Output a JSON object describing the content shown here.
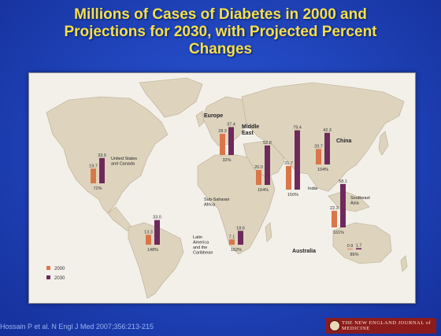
{
  "slide": {
    "title_line1": "Millions of Cases of Diabetes in 2000 and",
    "title_line2": "Projections for 2030, with Projected Percent",
    "title_line3": "Changes",
    "citation": "Hossain P et al. N Engl J Med 2007;356:213-215",
    "journal": "THE NEW ENGLAND JOURNAL of MEDICINE"
  },
  "colors": {
    "background": "#2146be",
    "title": "#f4e04a",
    "land": "#ded4be",
    "ocean": "#f3f0ea",
    "bar_2000": "#d9764a",
    "bar_2030": "#6e2a5a"
  },
  "chart_data": {
    "type": "bar",
    "legend": [
      "2000",
      "2030"
    ],
    "legend_position": "bottom-left",
    "series": [
      {
        "name": "2000",
        "color": "#d9764a"
      },
      {
        "name": "2030",
        "color": "#6e2a5a"
      }
    ],
    "regions": [
      {
        "id": "na",
        "name_lines": [
          "United States",
          "and Canada"
        ],
        "y2000": 19.7,
        "y2030": 33.9,
        "y2000_label": "19.7",
        "y2030_label": "33.9",
        "pct": "72%"
      },
      {
        "id": "la",
        "name_lines": [
          "Latin",
          "America",
          "and the",
          "Caribbean"
        ],
        "y2000": 13.3,
        "y2030": 33.0,
        "y2000_label": "13.3",
        "y2030_label": "33.0",
        "pct": "148%"
      },
      {
        "id": "eu",
        "name_lines": [
          "Europe"
        ],
        "y2000": 28.3,
        "y2030": 37.4,
        "y2000_label": "28.3",
        "y2030_label": "37.4",
        "pct": "32%"
      },
      {
        "id": "me",
        "name_lines": [
          "Middle",
          "East"
        ],
        "y2000": 20.0,
        "y2030": 52.8,
        "y2000_label": "20.0",
        "y2030_label": "52.8",
        "pct": "164%"
      },
      {
        "id": "af",
        "name_lines": [
          "Sub-Saharan",
          "Africa"
        ],
        "y2000": 7.1,
        "y2030": 18.6,
        "y2000_label": "7.1",
        "y2030_label": "18.6",
        "pct": "162%"
      },
      {
        "id": "in",
        "name_lines": [
          "India"
        ],
        "y2000": 31.7,
        "y2030": 79.4,
        "y2000_label": "31.7",
        "y2030_label": "79.4",
        "pct": "150%"
      },
      {
        "id": "cn",
        "name_lines": [
          "China"
        ],
        "y2000": 20.7,
        "y2030": 42.3,
        "y2000_label": "20.7",
        "y2030_label": "42.3",
        "pct": "104%"
      },
      {
        "id": "sa",
        "name_lines": [
          "Southeast",
          "Asia"
        ],
        "y2000": 22.3,
        "y2030": 58.1,
        "y2000_label": "22.3",
        "y2030_label": "58.1",
        "pct": "161%"
      },
      {
        "id": "au",
        "name_lines": [
          "Australia"
        ],
        "y2000": 0.9,
        "y2030": 1.7,
        "y2000_label": "0.9",
        "y2030_label": "1.7",
        "pct": "89%"
      }
    ]
  }
}
